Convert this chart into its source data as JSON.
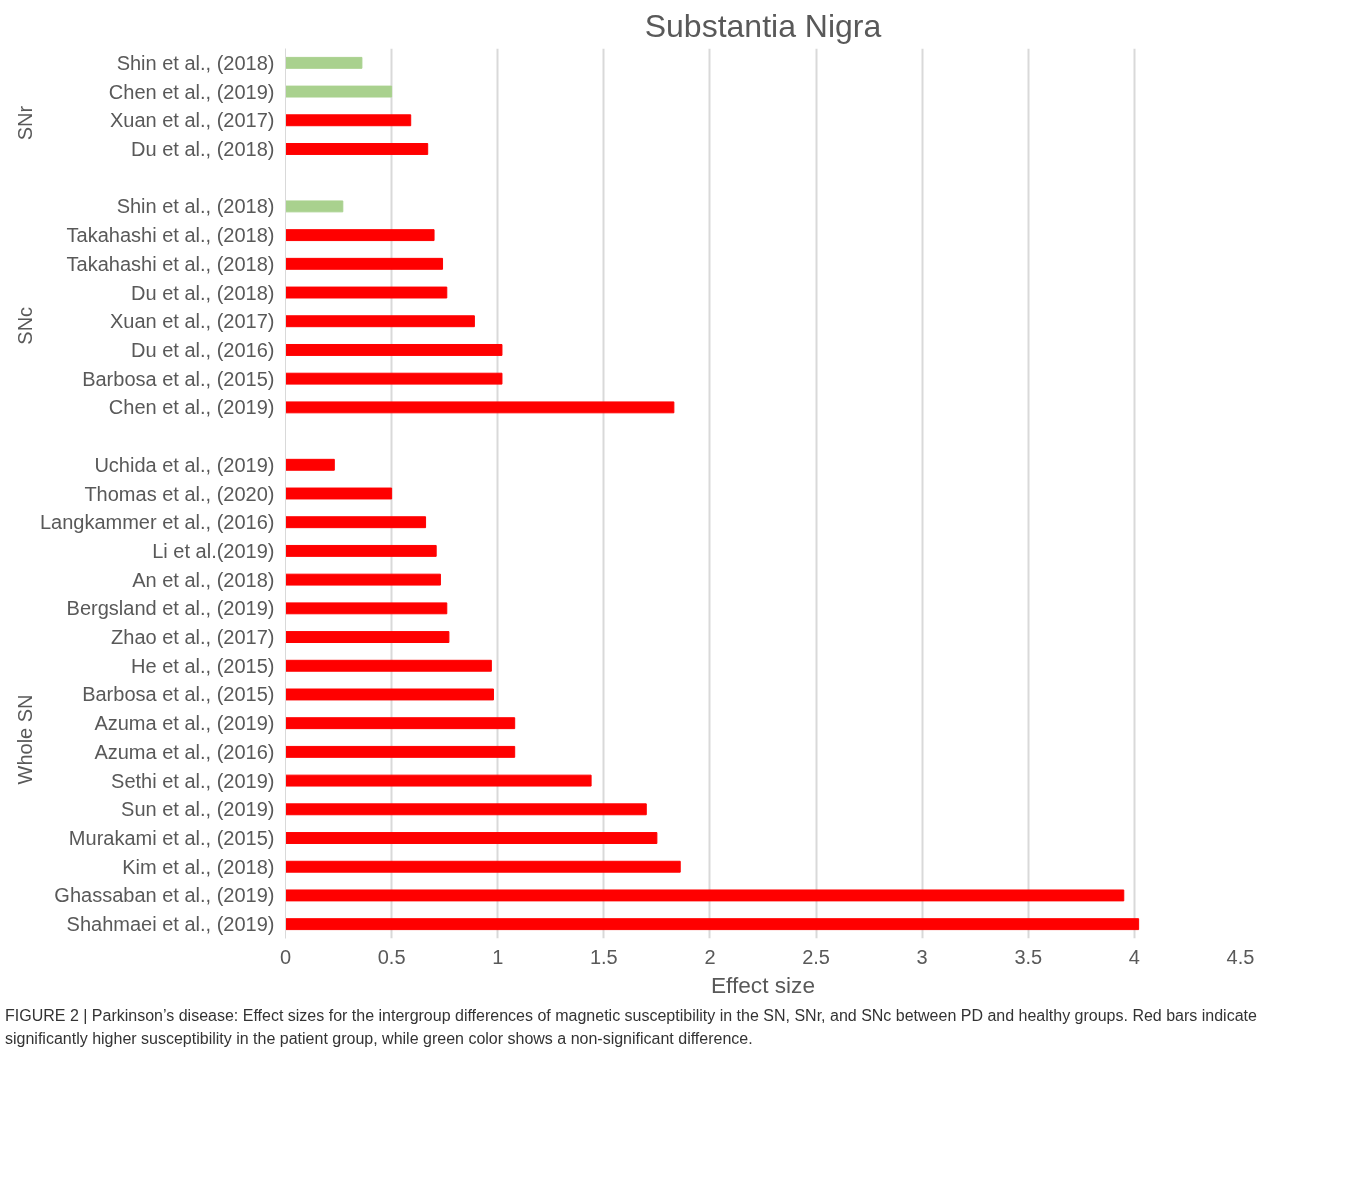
{
  "chart_data": {
    "type": "bar",
    "orientation": "horizontal",
    "title": "Substantia Nigra",
    "xlabel": "Effect size",
    "categories": [
      "Shin et al., (2018)",
      "Chen et al., (2019)",
      "Xuan et al., (2017)",
      "Du et al., (2018)",
      null,
      "Shin et al., (2018)",
      "Takahashi et al., (2018)",
      "Takahashi et al., (2018)",
      "Du et al., (2018)",
      "Xuan et al., (2017)",
      "Du et al., (2016)",
      "Barbosa et al., (2015)",
      "Chen et al., (2019)",
      null,
      "Uchida et al., (2019)",
      "Thomas et al., (2020)",
      "Langkammer et al., (2016)",
      "Li et al.(2019)",
      "An et al., (2018)",
      "Bergsland et al., (2019)",
      "Zhao et al., (2017)",
      "He et al., (2015)",
      "Barbosa et al., (2015)",
      "Azuma et al., (2019)",
      "Azuma et al., (2016)",
      "Sethi et al., (2019)",
      "Sun et al., (2019)",
      "Murakami et al., (2015)",
      "Kim et al., (2018)",
      "Ghassaban et al., (2019)",
      "Shahmaei et al., (2019)"
    ],
    "values": [
      0.36,
      0.5,
      0.59,
      0.67,
      null,
      0.27,
      0.7,
      0.74,
      0.76,
      0.89,
      1.02,
      1.02,
      1.83,
      null,
      0.23,
      0.5,
      0.66,
      0.71,
      0.73,
      0.76,
      0.77,
      0.97,
      0.98,
      1.08,
      1.08,
      1.44,
      1.7,
      1.75,
      1.86,
      3.95,
      4.02
    ],
    "colors": [
      "#a9d18e",
      "#a9d18e",
      "#ff0000",
      "#ff0000",
      null,
      "#a9d18e",
      "#ff0000",
      "#ff0000",
      "#ff0000",
      "#ff0000",
      "#ff0000",
      "#ff0000",
      "#ff0000",
      null,
      "#ff0000",
      "#ff0000",
      "#ff0000",
      "#ff0000",
      "#ff0000",
      "#ff0000",
      "#ff0000",
      "#ff0000",
      "#ff0000",
      "#ff0000",
      "#ff0000",
      "#ff0000",
      "#ff0000",
      "#ff0000",
      "#ff0000",
      "#ff0000",
      "#ff0000"
    ],
    "xlim": [
      0,
      4.5
    ],
    "xticks": [
      0,
      0.5,
      1,
      1.5,
      2,
      2.5,
      3,
      3.5,
      4,
      4.5
    ],
    "grid": "x",
    "annotations": [
      "SNr",
      "SNc",
      "Whole SN",
      "FIGURE 2 | Parkinson’s disease: Effect sizes for the intergroup differences of magnetic susceptibility in the SN, SNr, and SNc between PD and healthy groups. Red bars indicate significantly higher susceptibility in the patient group, while green color shows a non-significant difference."
    ]
  }
}
